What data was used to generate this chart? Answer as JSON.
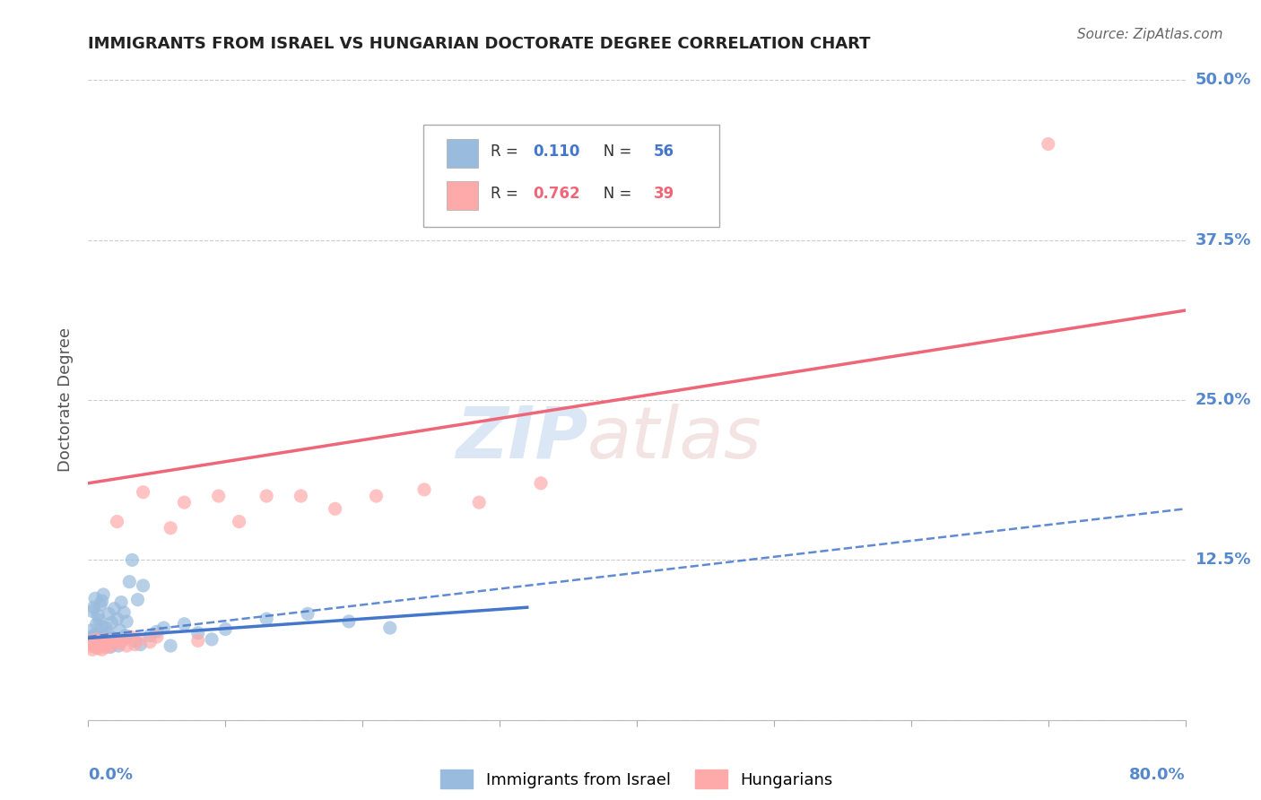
{
  "title": "IMMIGRANTS FROM ISRAEL VS HUNGARIAN DOCTORATE DEGREE CORRELATION CHART",
  "source": "Source: ZipAtlas.com",
  "ylabel": "Doctorate Degree",
  "xlim": [
    0.0,
    0.8
  ],
  "ylim": [
    0.0,
    0.5
  ],
  "ytick_positions": [
    0.0,
    0.125,
    0.25,
    0.375,
    0.5
  ],
  "ytick_labels_right": [
    "",
    "12.5%",
    "25.0%",
    "37.5%",
    "50.0%"
  ],
  "r_israel": 0.11,
  "n_israel": 56,
  "r_hungarian": 0.762,
  "n_hungarian": 39,
  "blue_scatter_color": "#99BBDD",
  "pink_scatter_color": "#FFAAAA",
  "blue_line_color": "#4477CC",
  "pink_line_color": "#EE6677",
  "axis_label_color": "#5588CC",
  "title_color": "#222222",
  "grid_color": "#CCCCCC",
  "background_color": "#FFFFFF",
  "blue_solid_line": {
    "x0": 0.0,
    "y0": 0.064,
    "x1": 0.32,
    "y1": 0.088
  },
  "blue_dashed_line": {
    "x0": 0.0,
    "y0": 0.065,
    "x1": 0.8,
    "y1": 0.165
  },
  "pink_solid_line": {
    "x0": 0.0,
    "y0": 0.185,
    "x1": 0.8,
    "y1": 0.32
  },
  "israel_x": [
    0.001,
    0.002,
    0.003,
    0.003,
    0.004,
    0.004,
    0.005,
    0.005,
    0.006,
    0.006,
    0.007,
    0.007,
    0.008,
    0.008,
    0.009,
    0.009,
    0.01,
    0.01,
    0.01,
    0.011,
    0.011,
    0.012,
    0.013,
    0.014,
    0.015,
    0.016,
    0.017,
    0.018,
    0.019,
    0.02,
    0.021,
    0.022,
    0.023,
    0.024,
    0.025,
    0.026,
    0.027,
    0.028,
    0.03,
    0.032,
    0.034,
    0.036,
    0.038,
    0.04,
    0.045,
    0.05,
    0.055,
    0.06,
    0.07,
    0.08,
    0.09,
    0.1,
    0.13,
    0.16,
    0.19,
    0.22
  ],
  "israel_y": [
    0.06,
    0.07,
    0.065,
    0.085,
    0.062,
    0.088,
    0.067,
    0.095,
    0.058,
    0.075,
    0.064,
    0.082,
    0.059,
    0.078,
    0.063,
    0.09,
    0.061,
    0.073,
    0.093,
    0.065,
    0.098,
    0.06,
    0.072,
    0.068,
    0.083,
    0.057,
    0.076,
    0.064,
    0.087,
    0.062,
    0.079,
    0.058,
    0.07,
    0.092,
    0.063,
    0.084,
    0.066,
    0.077,
    0.108,
    0.125,
    0.062,
    0.094,
    0.059,
    0.105,
    0.066,
    0.069,
    0.072,
    0.058,
    0.075,
    0.068,
    0.063,
    0.071,
    0.079,
    0.083,
    0.077,
    0.072
  ],
  "hungarian_x": [
    0.001,
    0.002,
    0.003,
    0.004,
    0.005,
    0.006,
    0.007,
    0.008,
    0.009,
    0.01,
    0.011,
    0.012,
    0.013,
    0.015,
    0.017,
    0.019,
    0.021,
    0.023,
    0.025,
    0.028,
    0.031,
    0.034,
    0.037,
    0.04,
    0.045,
    0.05,
    0.06,
    0.07,
    0.08,
    0.095,
    0.11,
    0.13,
    0.155,
    0.18,
    0.21,
    0.245,
    0.285,
    0.33,
    0.7
  ],
  "hungarian_y": [
    0.058,
    0.062,
    0.055,
    0.06,
    0.057,
    0.063,
    0.056,
    0.059,
    0.061,
    0.055,
    0.058,
    0.063,
    0.057,
    0.06,
    0.058,
    0.062,
    0.155,
    0.06,
    0.062,
    0.058,
    0.065,
    0.059,
    0.063,
    0.178,
    0.061,
    0.065,
    0.15,
    0.17,
    0.062,
    0.175,
    0.155,
    0.175,
    0.175,
    0.165,
    0.175,
    0.18,
    0.17,
    0.185,
    0.45
  ]
}
